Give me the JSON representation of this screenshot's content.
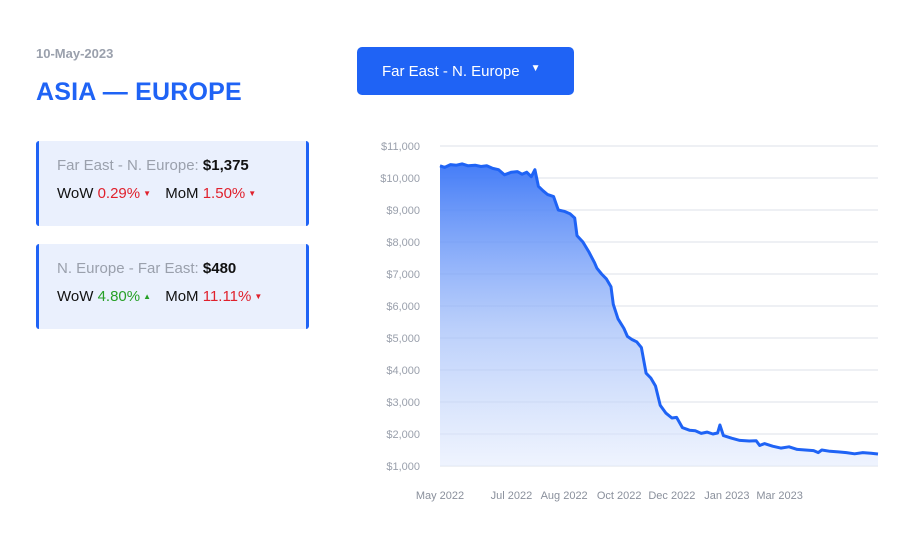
{
  "header": {
    "date": "10-May-2023",
    "title": "ASIA — EUROPE"
  },
  "route_select": {
    "selected": "Far East - N. Europe",
    "caret": "▼"
  },
  "cards": [
    {
      "route": "Far East - N. Europe:",
      "price": "$1,375",
      "wow_label": "WoW",
      "wow_value": "0.29%",
      "wow_arrow": "▼",
      "mom_label": "MoM",
      "mom_value": "1.50%",
      "mom_arrow": "▼"
    },
    {
      "route": "N. Europe - Far East:",
      "price": "$480",
      "wow_label": "WoW",
      "wow_value": "4.80%",
      "wow_arrow": "▲",
      "mom_label": "MoM",
      "mom_value": "11.11%",
      "mom_arrow": "▼"
    }
  ],
  "colors": {
    "accent": "#1f63f5",
    "negative": "#e0202c",
    "positive": "#27a027",
    "card_bg": "#eaf0fd",
    "muted": "#9aa0ac"
  },
  "chart_data": {
    "type": "area",
    "y_ticks": [
      "$11,000",
      "$10,000",
      "$9,000",
      "$8,000",
      "$7,000",
      "$6,000",
      "$5,000",
      "$4,000",
      "$3,000",
      "$2,000",
      "$1,000"
    ],
    "y_tick_values": [
      11000,
      10000,
      9000,
      8000,
      7000,
      6000,
      5000,
      4000,
      3000,
      2000,
      1000
    ],
    "ylim": [
      1000,
      11000
    ],
    "x_ticks": [
      "May 2022",
      "Jul 2022",
      "Aug 2022",
      "Oct 2022",
      "Dec 2022",
      "Jan 2023",
      "Mar 2023"
    ],
    "x_tick_dates": [
      "2022-05-01",
      "2022-07-01",
      "2022-08-15",
      "2022-10-01",
      "2022-11-15",
      "2023-01-01",
      "2023-02-15"
    ],
    "xlim": [
      "2022-05-01",
      "2023-05-10"
    ],
    "grid": true,
    "series": [
      {
        "color": "#1f63f5",
        "points": [
          [
            "2022-05-01",
            10380
          ],
          [
            "2022-05-05",
            10330
          ],
          [
            "2022-05-10",
            10420
          ],
          [
            "2022-05-15",
            10400
          ],
          [
            "2022-05-20",
            10440
          ],
          [
            "2022-05-25",
            10380
          ],
          [
            "2022-05-31",
            10400
          ],
          [
            "2022-06-05",
            10360
          ],
          [
            "2022-06-10",
            10380
          ],
          [
            "2022-06-15",
            10300
          ],
          [
            "2022-06-20",
            10260
          ],
          [
            "2022-06-25",
            10100
          ],
          [
            "2022-07-01",
            10180
          ],
          [
            "2022-07-06",
            10200
          ],
          [
            "2022-07-10",
            10120
          ],
          [
            "2022-07-14",
            10180
          ],
          [
            "2022-07-18",
            10040
          ],
          [
            "2022-07-21",
            10260
          ],
          [
            "2022-07-24",
            9740
          ],
          [
            "2022-07-28",
            9600
          ],
          [
            "2022-08-01",
            9480
          ],
          [
            "2022-08-06",
            9420
          ],
          [
            "2022-08-10",
            9000
          ],
          [
            "2022-08-15",
            8960
          ],
          [
            "2022-08-20",
            8880
          ],
          [
            "2022-08-24",
            8750
          ],
          [
            "2022-08-26",
            8200
          ],
          [
            "2022-08-31",
            8000
          ],
          [
            "2022-09-05",
            7700
          ],
          [
            "2022-09-10",
            7350
          ],
          [
            "2022-09-12",
            7180
          ],
          [
            "2022-09-16",
            7000
          ],
          [
            "2022-09-20",
            6850
          ],
          [
            "2022-09-24",
            6600
          ],
          [
            "2022-09-26",
            6050
          ],
          [
            "2022-09-30",
            5600
          ],
          [
            "2022-10-05",
            5300
          ],
          [
            "2022-10-08",
            5050
          ],
          [
            "2022-10-12",
            4950
          ],
          [
            "2022-10-16",
            4880
          ],
          [
            "2022-10-20",
            4700
          ],
          [
            "2022-10-24",
            3900
          ],
          [
            "2022-10-28",
            3750
          ],
          [
            "2022-11-01",
            3500
          ],
          [
            "2022-11-05",
            2900
          ],
          [
            "2022-11-10",
            2650
          ],
          [
            "2022-11-15",
            2500
          ],
          [
            "2022-11-19",
            2520
          ],
          [
            "2022-11-24",
            2200
          ],
          [
            "2022-11-30",
            2120
          ],
          [
            "2022-12-05",
            2100
          ],
          [
            "2022-12-10",
            2020
          ],
          [
            "2022-12-15",
            2060
          ],
          [
            "2022-12-20",
            2000
          ],
          [
            "2022-12-24",
            2030
          ],
          [
            "2022-12-26",
            2280
          ],
          [
            "2022-12-29",
            1950
          ],
          [
            "2023-01-05",
            1870
          ],
          [
            "2023-01-12",
            1800
          ],
          [
            "2023-01-20",
            1780
          ],
          [
            "2023-01-26",
            1790
          ],
          [
            "2023-01-29",
            1640
          ],
          [
            "2023-02-02",
            1700
          ],
          [
            "2023-02-09",
            1620
          ],
          [
            "2023-02-16",
            1560
          ],
          [
            "2023-02-23",
            1600
          ],
          [
            "2023-03-02",
            1520
          ],
          [
            "2023-03-09",
            1500
          ],
          [
            "2023-03-16",
            1480
          ],
          [
            "2023-03-20",
            1420
          ],
          [
            "2023-03-23",
            1500
          ],
          [
            "2023-03-30",
            1460
          ],
          [
            "2023-04-06",
            1440
          ],
          [
            "2023-04-13",
            1420
          ],
          [
            "2023-04-20",
            1380
          ],
          [
            "2023-04-27",
            1420
          ],
          [
            "2023-05-04",
            1400
          ],
          [
            "2023-05-10",
            1375
          ]
        ]
      }
    ]
  }
}
